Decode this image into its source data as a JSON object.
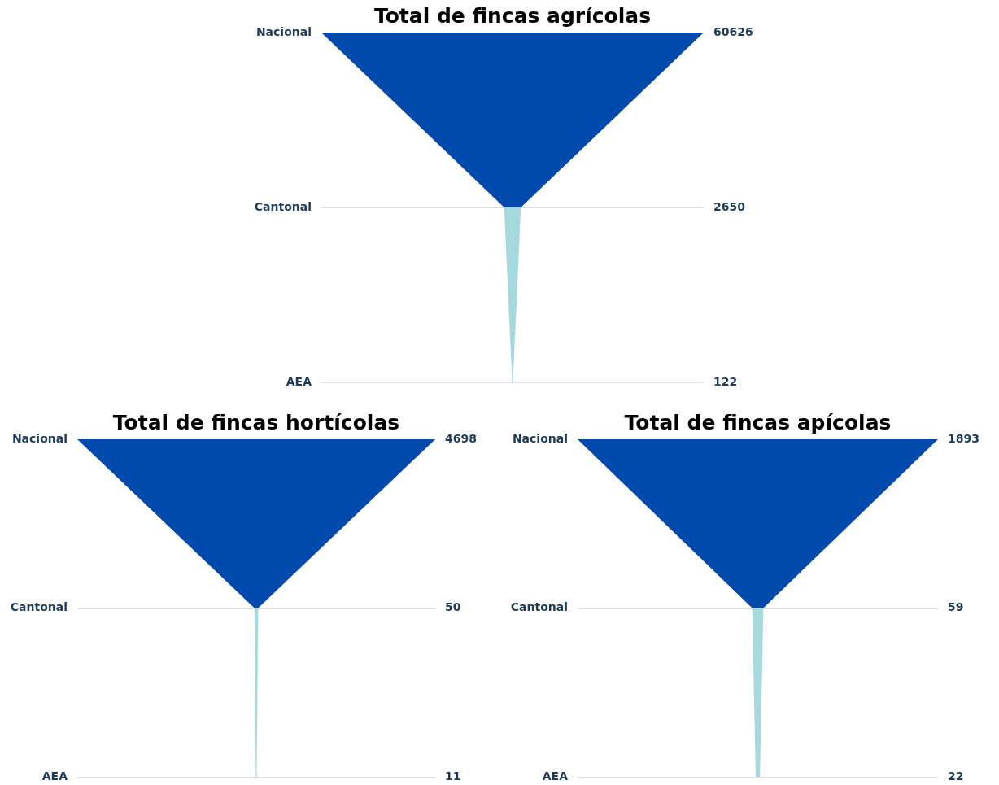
{
  "chart_data": [
    {
      "type": "other",
      "title": "Total de fincas agrícolas",
      "categories": [
        "Nacional",
        "Cantonal",
        "AEA"
      ],
      "values": [
        60626,
        2650,
        122
      ],
      "colors": [
        "#004aad",
        "#a6d9de",
        "#a6d9de"
      ],
      "data_labels": true
    },
    {
      "type": "other",
      "title": "Total de fincas hortícolas",
      "categories": [
        "Nacional",
        "Cantonal",
        "AEA"
      ],
      "values": [
        4698,
        50,
        11
      ],
      "colors": [
        "#004aad",
        "#a6d9de",
        "#a6d9de"
      ],
      "data_labels": true
    },
    {
      "type": "other",
      "title": "Total de fincas apícolas",
      "categories": [
        "Nacional",
        "Cantonal",
        "AEA"
      ],
      "values": [
        1893,
        59,
        22
      ],
      "colors": [
        "#004aad",
        "#a6d9de",
        "#a6d9de"
      ],
      "data_labels": true
    }
  ]
}
